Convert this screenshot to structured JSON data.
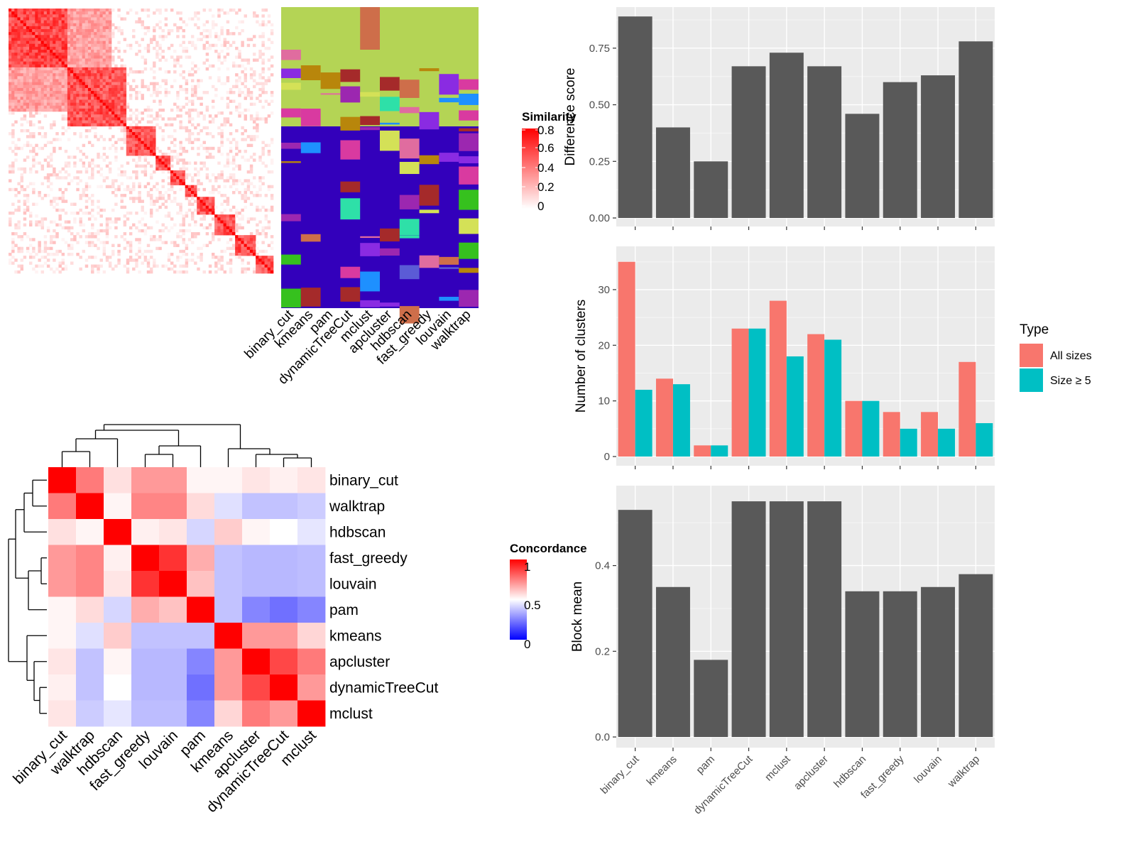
{
  "colors": {
    "panel_bg": "#ebebeb",
    "grid": "#ffffff",
    "bar": "#595959",
    "all_sizes": "#f8766d",
    "size_ge5": "#00bfc4",
    "heat_high": "#ff0000",
    "heat_mid": "#ffffff",
    "heat_low": "#0000ff"
  },
  "heatmap_legends": {
    "similarity": {
      "title": "Similarity",
      "ticks": [
        "0.8",
        "0.6",
        "0.4",
        "0.2",
        "0"
      ]
    },
    "concordance": {
      "title": "Concordance",
      "ticks": [
        "1",
        "0.5",
        "0"
      ]
    }
  },
  "membership_columns": [
    "binary_cut",
    "kmeans",
    "pam",
    "dynamicTreeCut",
    "mclust",
    "apcluster",
    "hdbscan",
    "fast_greedy",
    "louvain",
    "walktrap"
  ],
  "chart_data": [
    {
      "type": "bar",
      "categories": [
        "binary_cut",
        "kmeans",
        "pam",
        "dynamicTreeCut",
        "mclust",
        "apcluster",
        "hdbscan",
        "fast_greedy",
        "louvain",
        "walktrap"
      ],
      "values": [
        0.89,
        0.4,
        0.25,
        0.67,
        0.73,
        0.67,
        0.46,
        0.6,
        0.63,
        0.78
      ],
      "xlabel": "",
      "ylabel": "Difference score",
      "ylim": [
        0,
        0.9
      ],
      "yticks": [
        "0.00",
        "0.25",
        "0.50",
        "0.75"
      ],
      "grid": true
    },
    {
      "type": "bar",
      "categories": [
        "binary_cut",
        "kmeans",
        "pam",
        "dynamicTreeCut",
        "mclust",
        "apcluster",
        "hdbscan",
        "fast_greedy",
        "louvain",
        "walktrap"
      ],
      "series": [
        {
          "name": "All sizes",
          "values": [
            35,
            14,
            2,
            23,
            28,
            22,
            10,
            8,
            8,
            17
          ]
        },
        {
          "name": "Size ≥ 5",
          "values": [
            12,
            13,
            2,
            23,
            18,
            21,
            10,
            5,
            5,
            6
          ]
        }
      ],
      "xlabel": "",
      "ylabel": "Number of clusters",
      "ylim": [
        0,
        36.5
      ],
      "yticks": [
        "0",
        "10",
        "20",
        "30"
      ],
      "legend": {
        "title": "Type",
        "position": "right"
      },
      "grid": true
    },
    {
      "type": "bar",
      "categories": [
        "binary_cut",
        "kmeans",
        "pam",
        "dynamicTreeCut",
        "mclust",
        "apcluster",
        "hdbscan",
        "fast_greedy",
        "louvain",
        "walktrap"
      ],
      "values": [
        0.53,
        0.35,
        0.18,
        0.55,
        0.55,
        0.55,
        0.34,
        0.34,
        0.35,
        0.38
      ],
      "xlabel": "",
      "ylabel": "Block mean",
      "ylim": [
        0,
        0.57
      ],
      "yticks": [
        "0.0",
        "0.2",
        "0.4"
      ],
      "grid": true
    },
    {
      "type": "heatmap",
      "rows": [
        "binary_cut",
        "walktrap",
        "hdbscan",
        "fast_greedy",
        "louvain",
        "pam",
        "kmeans",
        "apcluster",
        "dynamicTreeCut",
        "mclust"
      ],
      "cols": [
        "binary_cut",
        "walktrap",
        "hdbscan",
        "fast_greedy",
        "louvain",
        "pam",
        "kmeans",
        "apcluster",
        "dynamicTreeCut",
        "mclust"
      ],
      "values": [
        [
          1.0,
          0.76,
          0.56,
          0.7,
          0.7,
          0.52,
          0.52,
          0.55,
          0.53,
          0.55
        ],
        [
          0.76,
          1.0,
          0.52,
          0.74,
          0.74,
          0.57,
          0.44,
          0.38,
          0.38,
          0.4
        ],
        [
          0.56,
          0.52,
          1.0,
          0.53,
          0.55,
          0.42,
          0.6,
          0.52,
          0.5,
          0.45
        ],
        [
          0.7,
          0.74,
          0.53,
          1.0,
          0.9,
          0.66,
          0.38,
          0.36,
          0.36,
          0.37
        ],
        [
          0.7,
          0.74,
          0.55,
          0.9,
          1.0,
          0.62,
          0.38,
          0.36,
          0.36,
          0.37
        ],
        [
          0.52,
          0.57,
          0.42,
          0.66,
          0.62,
          1.0,
          0.38,
          0.26,
          0.22,
          0.26
        ],
        [
          0.52,
          0.44,
          0.6,
          0.38,
          0.38,
          0.38,
          1.0,
          0.7,
          0.7,
          0.58
        ],
        [
          0.55,
          0.38,
          0.52,
          0.36,
          0.36,
          0.26,
          0.7,
          1.0,
          0.86,
          0.76
        ],
        [
          0.53,
          0.38,
          0.5,
          0.36,
          0.36,
          0.22,
          0.7,
          0.86,
          1.0,
          0.7
        ],
        [
          0.55,
          0.4,
          0.45,
          0.37,
          0.37,
          0.26,
          0.58,
          0.76,
          0.7,
          1.0
        ]
      ],
      "colorscale": {
        "low": 0,
        "mid": 0.5,
        "high": 1
      }
    }
  ]
}
